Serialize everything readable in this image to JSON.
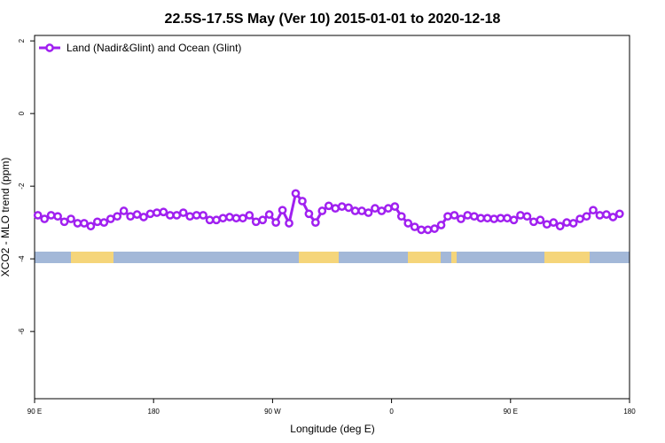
{
  "chart_data": {
    "type": "line",
    "title": "22.5S-17.5S May (Ver 10)   2015-01-01 to 2020-12-18",
    "x_label": "Longitude (deg E)",
    "y_label": "XCO2 - MLO trend (ppm)",
    "x": [
      92.5,
      97.5,
      102.5,
      107.5,
      112.5,
      117.5,
      122.5,
      127.5,
      132.5,
      137.5,
      142.5,
      147.5,
      152.5,
      157.5,
      162.5,
      167.5,
      172.5,
      177.5,
      182.5,
      187.5,
      192.5,
      197.5,
      202.5,
      207.5,
      212.5,
      217.5,
      222.5,
      227.5,
      232.5,
      237.5,
      242.5,
      247.5,
      252.5,
      257.5,
      262.5,
      267.5,
      272.5,
      277.5,
      282.5,
      287.5,
      292.5,
      297.5,
      302.5,
      307.5,
      312.5,
      317.5,
      322.5,
      327.5,
      332.5,
      337.5,
      342.5,
      347.5,
      352.5,
      357.5,
      362.5,
      367.5,
      372.5,
      377.5,
      382.5,
      387.5,
      392.5,
      397.5,
      402.5,
      407.5,
      412.5,
      417.5,
      422.5,
      427.5,
      432.5,
      437.5,
      442.5,
      447.5,
      452.5,
      457.5,
      462.5,
      467.5,
      472.5,
      477.5,
      482.5,
      487.5,
      492.5,
      497.5,
      502.5,
      507.5,
      512.5,
      517.5,
      522.5,
      527.5,
      532.5
    ],
    "series": [
      {
        "name": "Land (Nadir&Glint) and Ocean (Glint)",
        "color": "#a020f0",
        "values": [
          -2.8,
          -2.9,
          -2.8,
          -2.83,
          -2.98,
          -2.9,
          -3.02,
          -3.02,
          -3.1,
          -2.98,
          -3.0,
          -2.9,
          -2.83,
          -2.68,
          -2.83,
          -2.78,
          -2.85,
          -2.76,
          -2.73,
          -2.71,
          -2.8,
          -2.8,
          -2.73,
          -2.83,
          -2.8,
          -2.8,
          -2.93,
          -2.93,
          -2.88,
          -2.85,
          -2.88,
          -2.88,
          -2.8,
          -2.98,
          -2.93,
          -2.78,
          -3.0,
          -2.66,
          -3.02,
          -2.2,
          -2.41,
          -2.76,
          -3.0,
          -2.68,
          -2.54,
          -2.61,
          -2.56,
          -2.59,
          -2.68,
          -2.68,
          -2.73,
          -2.61,
          -2.68,
          -2.61,
          -2.56,
          -2.83,
          -3.02,
          -3.12,
          -3.2,
          -3.2,
          -3.17,
          -3.07,
          -2.83,
          -2.8,
          -2.9,
          -2.8,
          -2.83,
          -2.88,
          -2.88,
          -2.9,
          -2.88,
          -2.88,
          -2.93,
          -2.8,
          -2.83,
          -2.98,
          -2.93,
          -3.05,
          -3.0,
          -3.1,
          -3.0,
          -3.02,
          -2.9,
          -2.83,
          -2.66,
          -2.8,
          -2.78,
          -2.85,
          -2.76
        ]
      }
    ],
    "xlim": [
      90,
      540
    ],
    "xticks": [
      {
        "value": 90,
        "label": "90 E"
      },
      180,
      {
        "value": 270,
        "label": "90 W"
      },
      {
        "value": 360,
        "label": "0"
      },
      {
        "value": 450,
        "label": "90 E"
      },
      {
        "value": 540,
        "label": "180"
      }
    ],
    "ylim": [
      -7.85,
      2.15
    ],
    "yticks": [
      2,
      0,
      -2,
      -4,
      -6
    ],
    "legend": "top-left"
  }
}
